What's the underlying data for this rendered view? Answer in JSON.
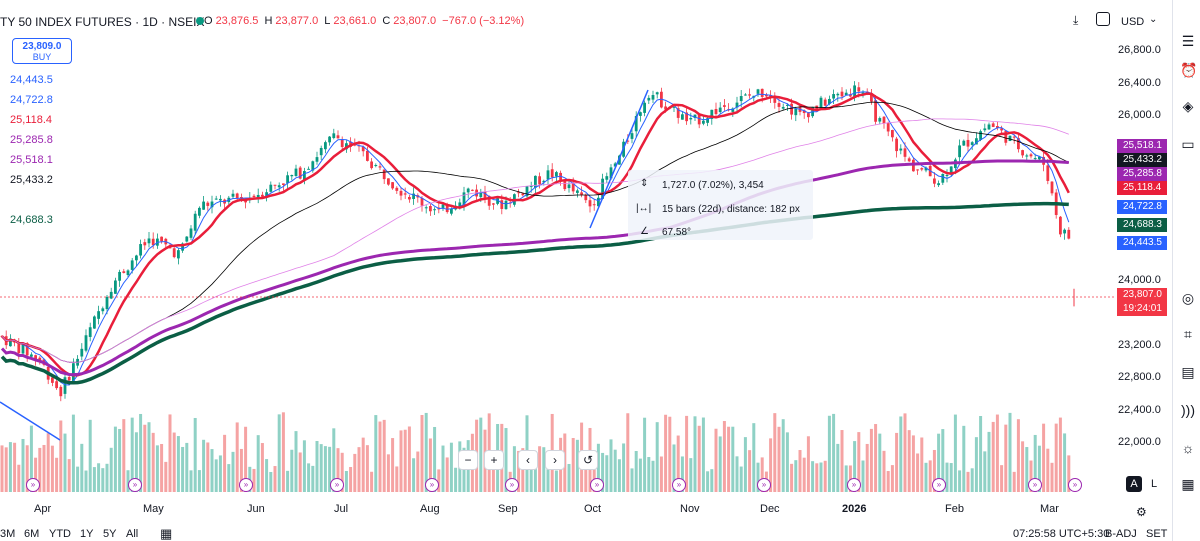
{
  "header": {
    "title": "TY 50 INDEX FUTURES · 1D · NSEIX",
    "ohlc": {
      "o_label": "O",
      "o_value": "23,876.5",
      "h_label": "H",
      "h_value": "23,877.0",
      "l_label": "L",
      "l_value": "23,661.0",
      "c_label": "C",
      "c_value": "23,807.0",
      "change": "−767.0 (−3.12%)"
    },
    "currency": "USD"
  },
  "buy_box": {
    "price": "23,809.0",
    "label": "BUY"
  },
  "ma_labels": [
    {
      "value": "24,443.5",
      "color": "#2962ff"
    },
    {
      "value": "24,722.8",
      "color": "#2962ff"
    },
    {
      "value": "25,118.4",
      "color": "#e91e3a"
    },
    {
      "value": "25,285.8",
      "color": "#9c27b0"
    },
    {
      "value": "25,518.1",
      "color": "#9c27b0"
    },
    {
      "value": "25,433.2",
      "color": "#131722"
    },
    {
      "value": "24,688.3",
      "color": "#0b5e45"
    }
  ],
  "price_axis": [
    "26,800.0",
    "26,400.0",
    "26,000.0",
    "24,000.0",
    "23,200.0",
    "22,800.0",
    "22,400.0",
    "22,000.0"
  ],
  "price_tags": [
    {
      "value": "25,518.1",
      "color": "#9c27b0"
    },
    {
      "value": "25,433.2",
      "color": "#131722"
    },
    {
      "value": "25,285.8",
      "color": "#9c27b0"
    },
    {
      "value": "25,118.4",
      "color": "#e91e3a"
    },
    {
      "value": "24,722.8",
      "color": "#2962ff"
    },
    {
      "value": "24,688.3",
      "color": "#0b5e45"
    },
    {
      "value": "24,443.5",
      "color": "#2962ff"
    },
    {
      "value": "23,807.0",
      "color": "#f23645"
    },
    {
      "value": "19:24:01",
      "color": "#f23645"
    }
  ],
  "time_axis": [
    "Apr",
    "May",
    "Jun",
    "Jul",
    "Aug",
    "Sep",
    "Oct",
    "Nov",
    "Dec",
    "2026",
    "Feb",
    "Mar"
  ],
  "measure": {
    "line1": "1,727.0 (7.02%), 3,454",
    "line2": "15 bars (22d), distance: 182 px",
    "line3": "67.58°"
  },
  "nav_buttons": [
    "−",
    "+",
    "‹",
    "›",
    "↺"
  ],
  "bottom": {
    "ranges": [
      "3M",
      "6M",
      "YTD",
      "1Y",
      "5Y",
      "All"
    ],
    "clock": "07:25:58 UTC+5:30",
    "badj": "B-ADJ",
    "set": "SET"
  },
  "scale_buttons": {
    "a": "A",
    "l": "L"
  },
  "colors": {
    "up": "#089981",
    "down": "#f23645",
    "vol_up": "#8fd1c5",
    "vol_down": "#f5a3a3",
    "ema5": "#2962ff",
    "ema10": "#e91e3a",
    "ema50": "#000000",
    "ma100": "#e082e8",
    "ma200": "#9c27b0",
    "ma400": "#0b5e45"
  },
  "icons": [
    "chart-settings-icon",
    "fullscreen-icon",
    "more-icon"
  ]
}
